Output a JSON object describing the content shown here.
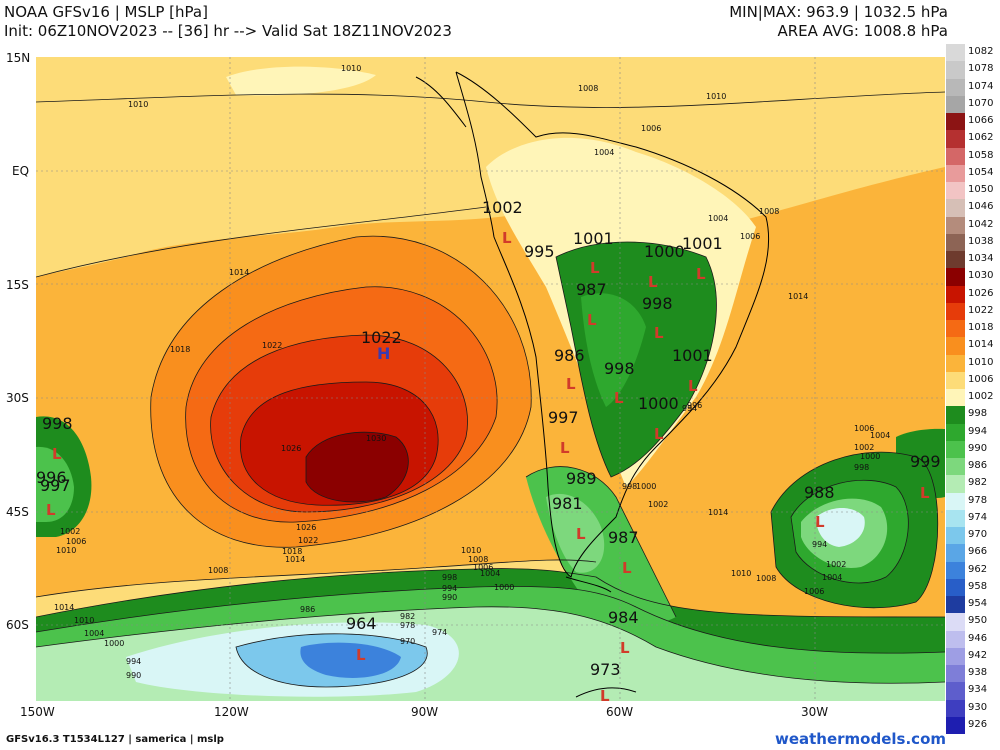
{
  "header": {
    "line1_left": "NOAA GFSv16 | MSLP [hPa]",
    "line2_left": "Init: 06Z10NOV2023 -- [36] hr --> Valid Sat 18Z11NOV2023",
    "line1_right": "MIN|MAX: 963.9 | 1032.5 hPa",
    "line2_right": "AREA AVG: 1008.8 hPa"
  },
  "footer": {
    "left": "GFSv16.3 T1534L127 | samerica | mslp",
    "right": "weathermodels.com"
  },
  "lat_labels": [
    "15N",
    "EQ",
    "15S",
    "30S",
    "45S",
    "60S"
  ],
  "lon_labels": [
    "150W",
    "120W",
    "90W",
    "60W",
    "30W"
  ],
  "legend": [
    {
      "value": "1082",
      "color": "#d9d9d9"
    },
    {
      "value": "1078",
      "color": "#c9c9c9"
    },
    {
      "value": "1074",
      "color": "#b8b8b8"
    },
    {
      "value": "1070",
      "color": "#a6a6a6"
    },
    {
      "value": "1066",
      "color": "#8c1414"
    },
    {
      "value": "1062",
      "color": "#b53030"
    },
    {
      "value": "1058",
      "color": "#d46767"
    },
    {
      "value": "1054",
      "color": "#e89b9b"
    },
    {
      "value": "1050",
      "color": "#f2c4c4"
    },
    {
      "value": "1046",
      "color": "#d6bfb6"
    },
    {
      "value": "1042",
      "color": "#b48c7c"
    },
    {
      "value": "1038",
      "color": "#8d6455"
    },
    {
      "value": "1034",
      "color": "#6e3b2e"
    },
    {
      "value": "1030",
      "color": "#8b0000"
    },
    {
      "value": "1026",
      "color": "#c81400"
    },
    {
      "value": "1022",
      "color": "#e63c0a"
    },
    {
      "value": "1018",
      "color": "#f56a14"
    },
    {
      "value": "1014",
      "color": "#f98f1e"
    },
    {
      "value": "1010",
      "color": "#fbb43a"
    },
    {
      "value": "1006",
      "color": "#fddc78"
    },
    {
      "value": "1002",
      "color": "#fff5b8"
    },
    {
      "value": "998",
      "color": "#1e8c1e"
    },
    {
      "value": "994",
      "color": "#2ea82e"
    },
    {
      "value": "990",
      "color": "#4cc24c"
    },
    {
      "value": "986",
      "color": "#7dd87d"
    },
    {
      "value": "982",
      "color": "#b4ecb4"
    },
    {
      "value": "978",
      "color": "#d9f6f6"
    },
    {
      "value": "974",
      "color": "#a8e4f0"
    },
    {
      "value": "970",
      "color": "#7cc8ec"
    },
    {
      "value": "966",
      "color": "#5aa6e6"
    },
    {
      "value": "962",
      "color": "#3c82dc"
    },
    {
      "value": "958",
      "color": "#285ec8"
    },
    {
      "value": "954",
      "color": "#1e3ca0"
    },
    {
      "value": "950",
      "color": "#dcdcf6"
    },
    {
      "value": "946",
      "color": "#bebeee"
    },
    {
      "value": "942",
      "color": "#9e9ee4"
    },
    {
      "value": "938",
      "color": "#7e7ed8"
    },
    {
      "value": "934",
      "color": "#5e5ecc"
    },
    {
      "value": "930",
      "color": "#3e3ec0"
    },
    {
      "value": "926",
      "color": "#1e1eb0"
    }
  ],
  "centers": [
    {
      "type": "H",
      "value": "1022"
    },
    {
      "type": "L",
      "value": "964"
    },
    {
      "type": "L",
      "value": "988"
    },
    {
      "type": "L",
      "value": "999"
    },
    {
      "type": "L",
      "value": "998"
    },
    {
      "type": "L",
      "value": "996"
    },
    {
      "type": "L",
      "value": "997"
    },
    {
      "type": "L",
      "value": "1002"
    },
    {
      "type": "L",
      "value": "995"
    },
    {
      "type": "L",
      "value": "1001"
    },
    {
      "type": "L",
      "value": "1000"
    },
    {
      "type": "L",
      "value": "1001"
    },
    {
      "type": "L",
      "value": "987"
    },
    {
      "type": "L",
      "value": "998"
    },
    {
      "type": "L",
      "value": "986"
    },
    {
      "type": "L",
      "value": "998"
    },
    {
      "type": "L",
      "value": "1001"
    },
    {
      "type": "L",
      "value": "997"
    },
    {
      "type": "L",
      "value": "1000"
    },
    {
      "type": "L",
      "value": "989"
    },
    {
      "type": "L",
      "value": "981"
    },
    {
      "type": "L",
      "value": "987"
    },
    {
      "type": "L",
      "value": "984"
    },
    {
      "type": "L",
      "value": "973"
    }
  ],
  "contour_labels": [
    "1010",
    "1008",
    "1006",
    "1004",
    "1010",
    "1014",
    "1018",
    "1022",
    "1026",
    "1030",
    "1026",
    "1022",
    "1018",
    "1014",
    "1010",
    "1006",
    "1002",
    "1010",
    "1008",
    "1006",
    "1004",
    "1000",
    "998",
    "994",
    "990",
    "986",
    "982",
    "978",
    "974",
    "970",
    "994",
    "990",
    "1000",
    "1004",
    "1008",
    "1014",
    "1010",
    "1006",
    "1004",
    "1002",
    "1000",
    "998",
    "994",
    "1002",
    "1004",
    "1006",
    "1008",
    "1010",
    "1014",
    "1010",
    "1008",
    "1006",
    "1004",
    "1002",
    "1000",
    "998",
    "996",
    "994",
    "1014"
  ]
}
